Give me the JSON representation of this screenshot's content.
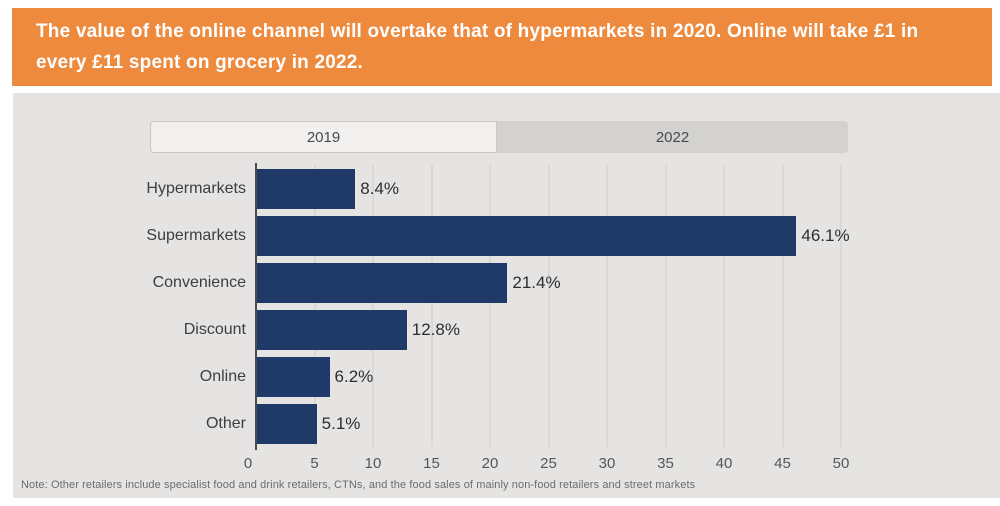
{
  "banner": {
    "text": "The value of the online channel will overtake that of hypermarkets in 2020. Online will take £1 in every £11 spent on grocery in 2022.",
    "bg_color": "#ee8a3e"
  },
  "tabs": [
    {
      "label": "2019",
      "active": true
    },
    {
      "label": "2022",
      "active": false
    }
  ],
  "chart_data": {
    "type": "bar",
    "orientation": "horizontal",
    "categories": [
      "Hypermarkets",
      "Supermarkets",
      "Convenience",
      "Discount",
      "Online",
      "Other"
    ],
    "values": [
      8.4,
      46.1,
      21.4,
      12.8,
      6.2,
      5.1
    ],
    "value_labels": [
      "8.4%",
      "46.1%",
      "21.4%",
      "12.8%",
      "6.2%",
      "5.1%"
    ],
    "xlim": [
      0,
      50
    ],
    "xticks": [
      0,
      5,
      10,
      15,
      20,
      25,
      30,
      35,
      40,
      45,
      50
    ],
    "grid": true,
    "legend": "none",
    "bar_color": "#1f3a68",
    "panel_color": "#e5e4e3"
  },
  "note": {
    "text": "Note: Other retailers include specialist food and drink retailers, CTNs, and the food sales of mainly non-food retailers and street markets"
  }
}
